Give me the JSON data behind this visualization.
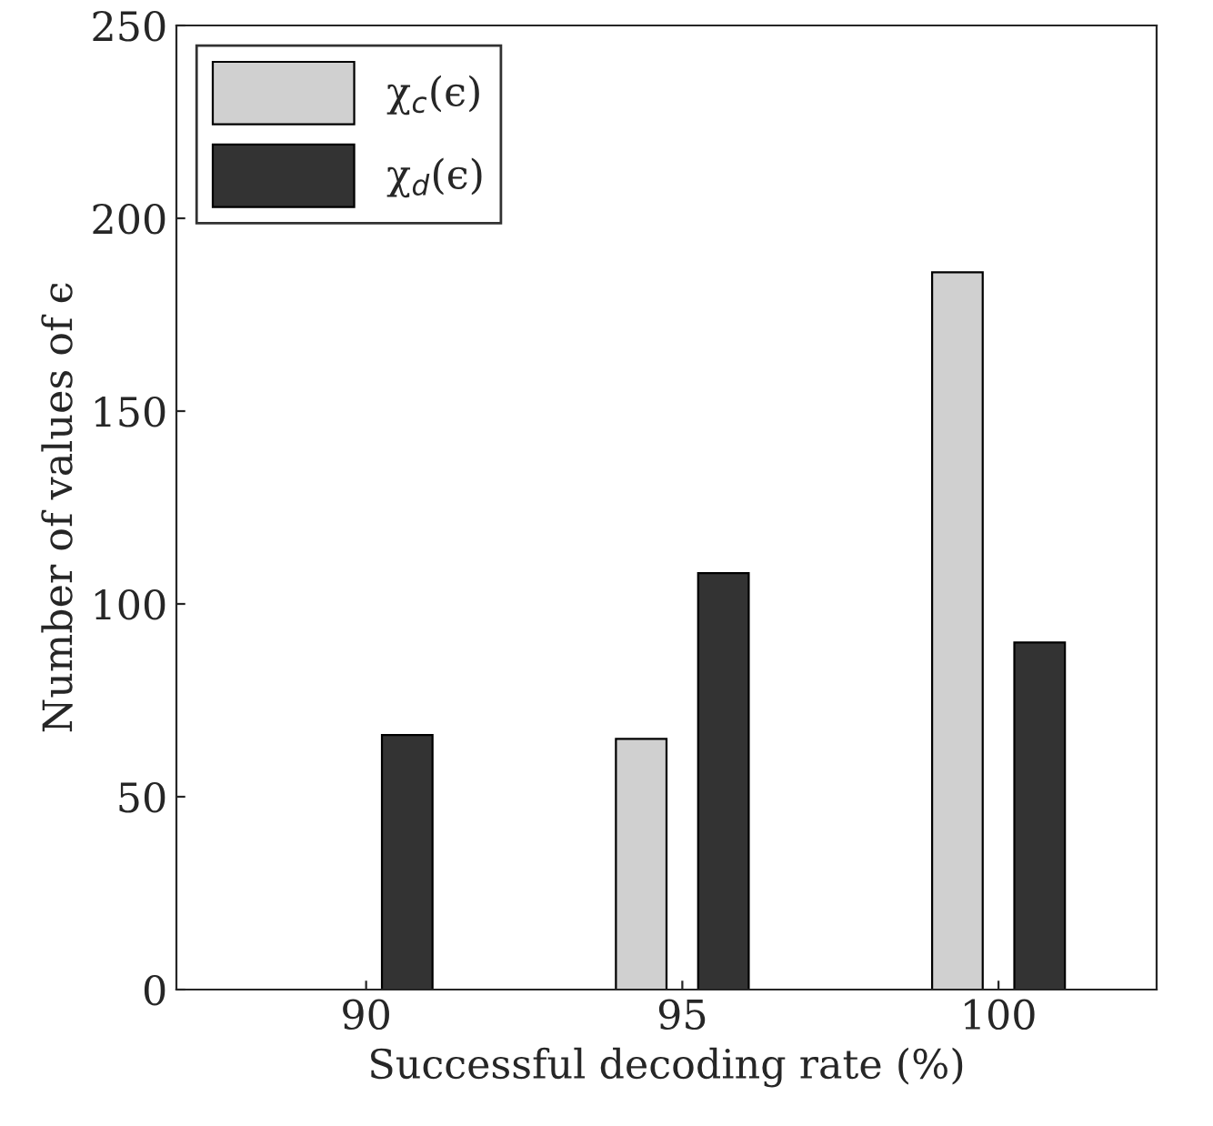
{
  "chart_data": {
    "type": "bar",
    "xlabel": "Successful decoding rate (%)",
    "ylabel": "Number of values of ϵ",
    "categories": [
      "90",
      "95",
      "100"
    ],
    "series": [
      {
        "name": "χ$_{c}$(ϵ)",
        "color": "#d0d0d0",
        "values": [
          null,
          65,
          186
        ]
      },
      {
        "name": "χ$_{d}$(ϵ)",
        "color": "#333333",
        "values": [
          66,
          108,
          90
        ]
      }
    ],
    "ylim": [
      0,
      250
    ],
    "yticks": [
      0,
      50,
      100,
      150,
      200,
      250
    ],
    "grid": false,
    "legend": "top left"
  }
}
